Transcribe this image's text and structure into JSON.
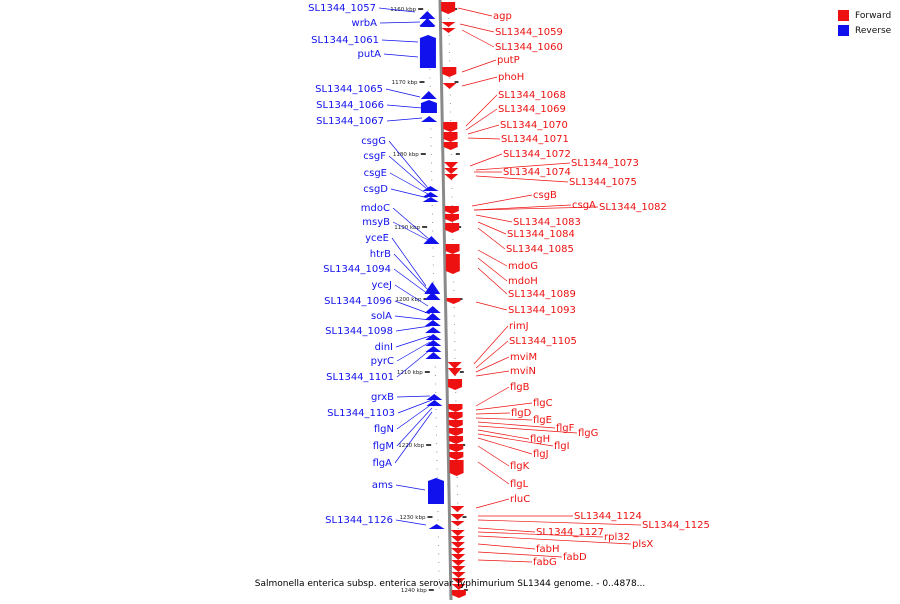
{
  "colors": {
    "forward": "#ee1111",
    "reverse": "#1111ee",
    "axis": "#888888"
  },
  "legend": {
    "forward_label": "Forward",
    "reverse_label": "Reverse",
    "forward_color": "#ee1111",
    "reverse_color": "#1111ee"
  },
  "caption": "Salmonella enterica subsp. enterica serovar Typhimurium SL1344 genome. - 0..4878...",
  "axis_ticks": [
    "1160 kbp",
    "1170 kbp",
    "1180 kbp",
    "1190 kbp",
    "1200 kbp",
    "1210 kbp",
    "1220 kbp",
    "1230 kbp",
    "1240 kbp"
  ],
  "reverse_genes": [
    "SL1344_1057",
    "wrbA",
    "SL1344_1061",
    "putA",
    "SL1344_1065",
    "SL1344_1066",
    "SL1344_1067",
    "csgG",
    "csgF",
    "csgE",
    "csgD",
    "mdoC",
    "msyB",
    "yceE",
    "htrB",
    "SL1344_1094",
    "yceJ",
    "SL1344_1096",
    "solA",
    "SL1344_1098",
    "dinI",
    "pyrC",
    "SL1344_1101",
    "grxB",
    "SL1344_1103",
    "flgN",
    "flgM",
    "flgA",
    "ams",
    "SL1344_1126"
  ],
  "forward_genes": [
    "agp",
    "SL1344_1059",
    "SL1344_1060",
    "putP",
    "phoH",
    "SL1344_1068",
    "SL1344_1069",
    "SL1344_1070",
    "SL1344_1071",
    "SL1344_1072",
    "SL1344_1073",
    "SL1344_1074",
    "SL1344_1075",
    "csgB",
    "csgA",
    "SL1344_1082",
    "SL1344_1083",
    "SL1344_1084",
    "SL1344_1085",
    "mdoG",
    "mdoH",
    "SL1344_1089",
    "SL1344_1093",
    "rimJ",
    "SL1344_1105",
    "mviM",
    "mviN",
    "flgB",
    "flgC",
    "flgD",
    "flgE",
    "flgF",
    "flgG",
    "flgH",
    "flgI",
    "flgJ",
    "flgK",
    "flgL",
    "rluC",
    "SL1344_1124",
    "SL1344_1125",
    "SL1344_1127",
    "rpl32",
    "plsX",
    "fabH",
    "fabD",
    "fabG"
  ]
}
